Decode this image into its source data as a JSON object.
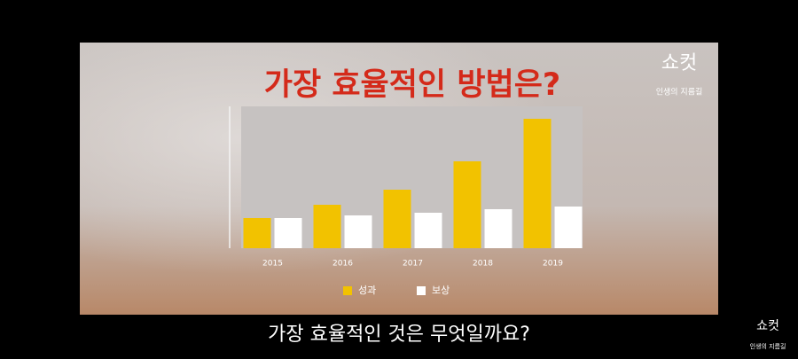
{
  "chart_data": {
    "type": "bar",
    "title": "가장 효율적인 방법은?",
    "categories": [
      "2015",
      "2016",
      "2017",
      "2018",
      "2019"
    ],
    "series": [
      {
        "name": "성과",
        "color": "#f2c200",
        "values": [
          34,
          49,
          66,
          98,
          146
        ]
      },
      {
        "name": "보상",
        "color": "#ffffff",
        "values": [
          34,
          37,
          40,
          44,
          47
        ]
      }
    ]
  },
  "video": {
    "logo": "쇼컷",
    "logo_sub": "인생의 지름길",
    "subtitle": "가장 효율적인 것은 무엇일까요?",
    "corner_logo": "쇼컷",
    "corner_logo_sub": "인생의 지름길"
  }
}
